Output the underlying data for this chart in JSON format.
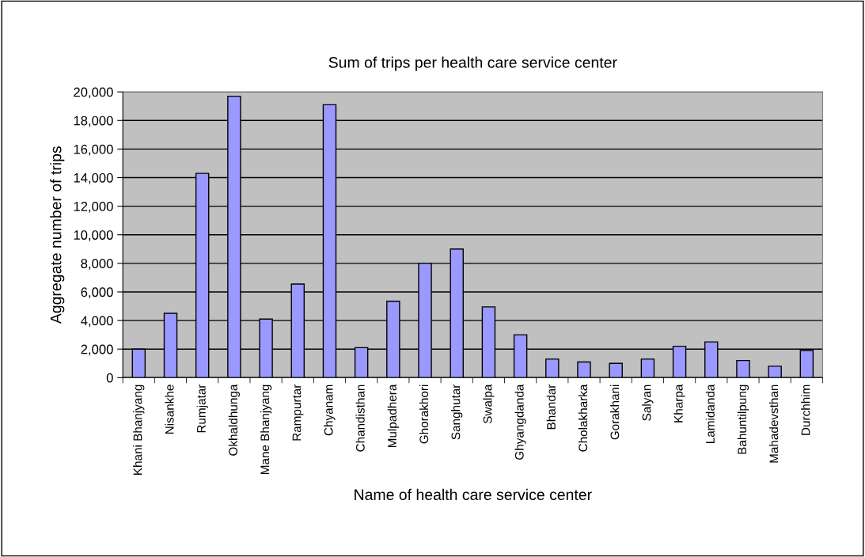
{
  "chart_data": {
    "type": "bar",
    "title": "Sum of trips per health care service center",
    "xlabel": "Name of health care service center",
    "ylabel": "Aggregate number of trips",
    "categories": [
      "Khani Bhanjyang",
      "Nisankhe",
      "Rumjatar",
      "Okhaldhunga",
      "Mane Bhanjyang",
      "Rampurtar",
      "Chyanam",
      "Chandisthan",
      "Mulpadhera",
      "Ghorakhori",
      "Sanghutar",
      "Swalpa",
      "Ghyangdanda",
      "Bhandar",
      "Cholakharka",
      "Gorakhani",
      "Salyan",
      "Kharpa",
      "Lamidanda",
      "Bahuntilpung",
      "Mahadevsthan",
      "Durchhim"
    ],
    "values": [
      2000,
      4500,
      14300,
      19700,
      4100,
      6550,
      19100,
      2100,
      5350,
      8000,
      9000,
      4950,
      3000,
      1300,
      1100,
      1000,
      1300,
      2200,
      2500,
      1200,
      800,
      1900
    ],
    "color": "#9999ff",
    "ylim": [
      0,
      20000
    ],
    "yticks": [
      {
        "value": 0,
        "label": "0"
      },
      {
        "value": 2000,
        "label": "2,000"
      },
      {
        "value": 4000,
        "label": "4,000"
      },
      {
        "value": 6000,
        "label": "6,000"
      },
      {
        "value": 8000,
        "label": "8,000"
      },
      {
        "value": 10000,
        "label": "10,000"
      },
      {
        "value": 12000,
        "label": "12,000"
      },
      {
        "value": 14000,
        "label": "14,000"
      },
      {
        "value": 16000,
        "label": "16,000"
      },
      {
        "value": 18000,
        "label": "18,000"
      },
      {
        "value": 20000,
        "label": "20,000"
      }
    ],
    "grid": "y"
  }
}
